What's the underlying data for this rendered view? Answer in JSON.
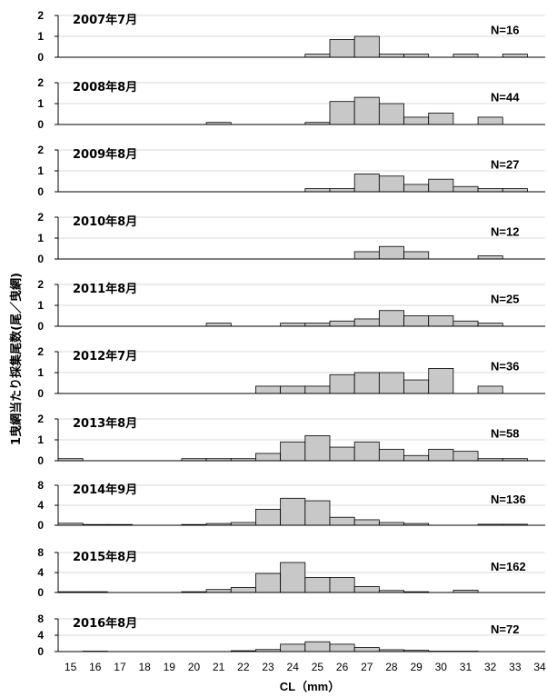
{
  "chart_data": {
    "type": "bar",
    "ylabel": "1曳網当たり採集尾数(尾／曳網)",
    "xlabel": "CL（mm）",
    "x_ticks": [
      15,
      16,
      17,
      18,
      19,
      20,
      21,
      22,
      23,
      24,
      25,
      26,
      27,
      28,
      29,
      30,
      31,
      32,
      33,
      34
    ],
    "bin_left_edges": [
      15,
      16,
      17,
      18,
      19,
      20,
      21,
      22,
      23,
      24,
      25,
      26,
      27,
      28,
      29,
      30,
      31,
      32,
      33
    ],
    "panels": [
      {
        "label": "2007年7月",
        "n_label": "N=16",
        "ylim": [
          0,
          2
        ],
        "yticks": [
          0,
          1,
          2
        ],
        "values": [
          0,
          0,
          0,
          0,
          0,
          0,
          0,
          0,
          0,
          0,
          0.15,
          0.85,
          1.0,
          0.15,
          0.15,
          0,
          0.15,
          0,
          0.15
        ]
      },
      {
        "label": "2008年8月",
        "n_label": "N=44",
        "ylim": [
          0,
          2
        ],
        "yticks": [
          0,
          1,
          2
        ],
        "values": [
          0,
          0,
          0,
          0,
          0,
          0,
          0.1,
          0,
          0,
          0,
          0.1,
          1.1,
          1.3,
          1.0,
          0.35,
          0.55,
          0,
          0.35,
          0
        ]
      },
      {
        "label": "2009年8月",
        "n_label": "N=27",
        "ylim": [
          0,
          2
        ],
        "yticks": [
          0,
          1,
          2
        ],
        "values": [
          0,
          0,
          0,
          0,
          0,
          0,
          0,
          0,
          0,
          0,
          0.15,
          0.15,
          0.85,
          0.75,
          0.35,
          0.6,
          0.25,
          0.15,
          0.15
        ]
      },
      {
        "label": "2010年8月",
        "n_label": "N=12",
        "ylim": [
          0,
          2
        ],
        "yticks": [
          0,
          1,
          2
        ],
        "values": [
          0,
          0,
          0,
          0,
          0,
          0,
          0,
          0,
          0,
          0,
          0,
          0,
          0.35,
          0.6,
          0.35,
          0,
          0,
          0.15,
          0
        ]
      },
      {
        "label": "2011年8月",
        "n_label": "N=25",
        "ylim": [
          0,
          2
        ],
        "yticks": [
          0,
          1,
          2
        ],
        "values": [
          0,
          0,
          0,
          0,
          0,
          0,
          0.15,
          0,
          0,
          0.15,
          0.15,
          0.25,
          0.35,
          0.75,
          0.5,
          0.5,
          0.25,
          0.15,
          0
        ]
      },
      {
        "label": "2012年7月",
        "n_label": "N=36",
        "ylim": [
          0,
          2
        ],
        "yticks": [
          0,
          1,
          2
        ],
        "values": [
          0,
          0,
          0,
          0,
          0,
          0,
          0,
          0,
          0.35,
          0.35,
          0.35,
          0.9,
          1.0,
          1.0,
          0.65,
          1.2,
          0,
          0.35,
          0
        ]
      },
      {
        "label": "2013年8月",
        "n_label": "N=58",
        "ylim": [
          0,
          2
        ],
        "yticks": [
          0,
          1,
          2
        ],
        "values": [
          0.1,
          0,
          0,
          0,
          0,
          0.1,
          0.1,
          0.1,
          0.35,
          0.9,
          1.2,
          0.65,
          0.9,
          0.55,
          0.25,
          0.55,
          0.45,
          0.1,
          0.1
        ]
      },
      {
        "label": "2014年9月",
        "n_label": "N=136",
        "ylim": [
          0,
          8
        ],
        "yticks": [
          0,
          4,
          8
        ],
        "values": [
          0.4,
          0.15,
          0.15,
          0,
          0,
          0.15,
          0.35,
          0.55,
          3.2,
          5.4,
          4.9,
          1.6,
          1.1,
          0.55,
          0.35,
          0,
          0,
          0.2,
          0.2
        ]
      },
      {
        "label": "2015年8月",
        "n_label": "N=162",
        "ylim": [
          0,
          8
        ],
        "yticks": [
          0,
          4,
          8
        ],
        "values": [
          0.15,
          0.15,
          0,
          0,
          0,
          0.15,
          0.6,
          1.0,
          3.8,
          6.0,
          3.0,
          3.0,
          1.2,
          0.4,
          0.15,
          0,
          0.45,
          0,
          0
        ]
      },
      {
        "label": "2016年8月",
        "n_label": "N=72",
        "ylim": [
          0,
          8
        ],
        "yticks": [
          0,
          4,
          8
        ],
        "values": [
          0,
          0.1,
          0,
          0,
          0,
          0,
          0,
          0.2,
          0.5,
          1.8,
          2.4,
          1.8,
          1.0,
          0.45,
          0.3,
          0.1,
          0.1,
          0,
          0
        ]
      }
    ],
    "colors": {
      "bar_fill": "#c8c8c8",
      "bar_stroke": "#000000",
      "grid": "#d9d9d9",
      "axis": "#000000"
    }
  }
}
